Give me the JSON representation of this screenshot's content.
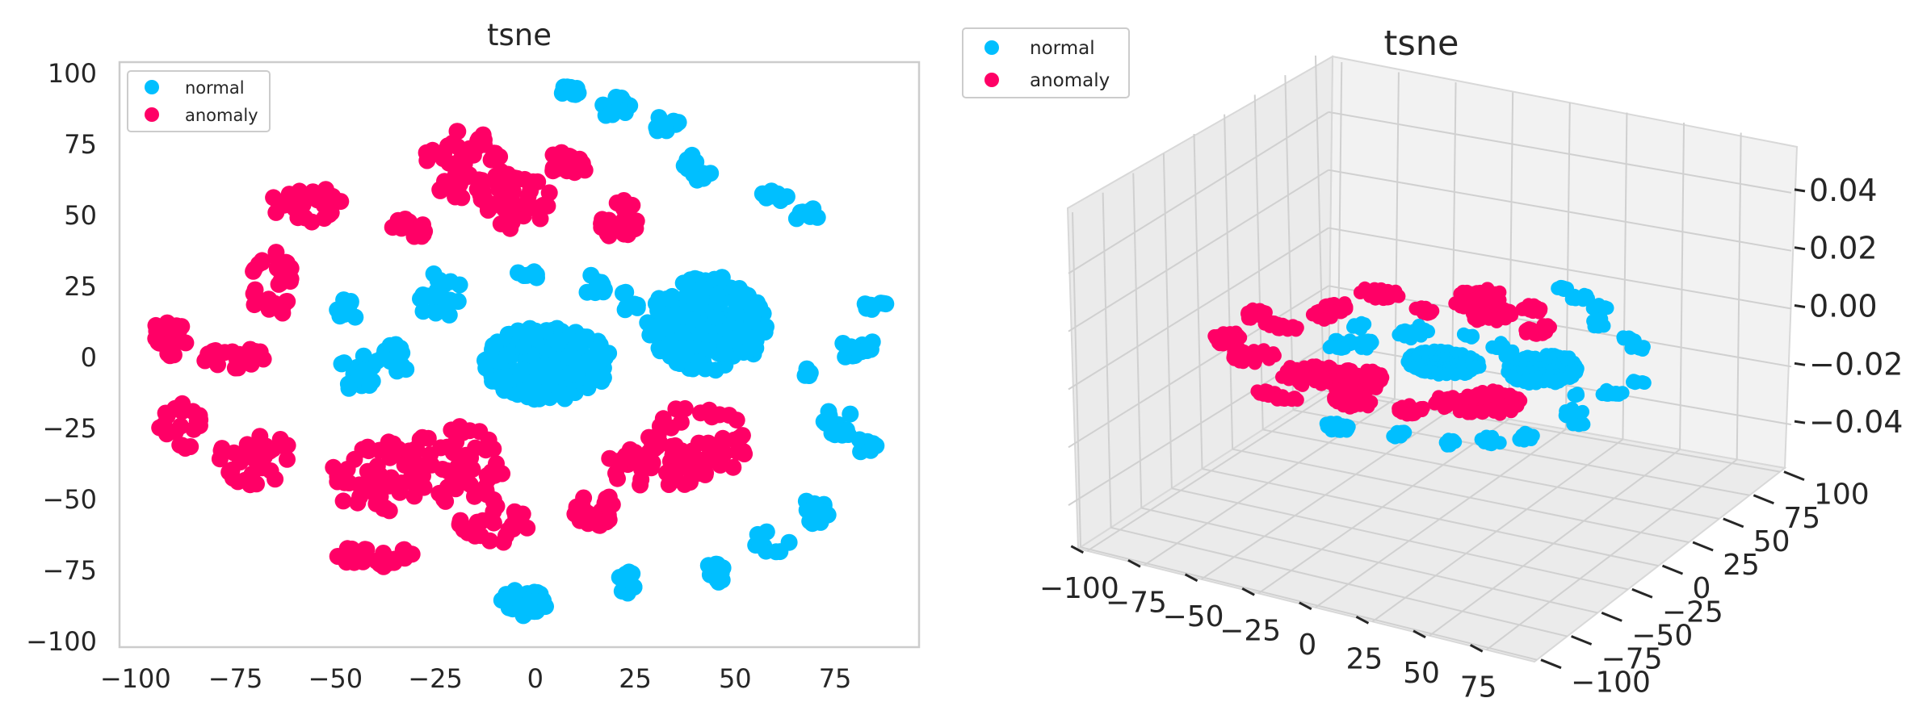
{
  "chart_data": [
    {
      "type": "scatter",
      "title": "tsne",
      "xlabel": "",
      "ylabel": "",
      "xlim": [
        -104,
        96
      ],
      "ylim": [
        -102,
        104
      ],
      "xticks": [
        -100,
        -75,
        -50,
        -25,
        0,
        25,
        50,
        75
      ],
      "yticks": [
        100,
        75,
        50,
        25,
        0,
        -25,
        -50,
        -75,
        -100
      ],
      "xtick_labels": [
        "−100",
        "−75",
        "−50",
        "−25",
        "0",
        "25",
        "50",
        "75"
      ],
      "ytick_labels": [
        "100",
        "75",
        "50",
        "25",
        "0",
        "−25",
        "−50",
        "−75",
        "−100"
      ],
      "grid": false,
      "legend": "top-left",
      "series": [
        {
          "name": "normal",
          "color": "#00bfff",
          "clusters": [
            {
              "cx": 3,
              "cy": -2,
              "rx": 16,
              "ry": 13,
              "n": 260
            },
            {
              "cx": 43,
              "cy": 12,
              "rx": 15,
              "ry": 17,
              "n": 240
            },
            {
              "cx": 9,
              "cy": 94,
              "rx": 3,
              "ry": 2,
              "n": 10
            },
            {
              "cx": 20,
              "cy": 88,
              "rx": 4,
              "ry": 4,
              "n": 12
            },
            {
              "cx": 33,
              "cy": 82,
              "rx": 3,
              "ry": 4,
              "n": 10
            },
            {
              "cx": 40,
              "cy": 66,
              "rx": 4,
              "ry": 6,
              "n": 12
            },
            {
              "cx": 60,
              "cy": 57,
              "rx": 4,
              "ry": 2,
              "n": 10
            },
            {
              "cx": 68,
              "cy": 50,
              "rx": 3,
              "ry": 3,
              "n": 8
            },
            {
              "cx": 14,
              "cy": 25,
              "rx": 4,
              "ry": 4,
              "n": 12
            },
            {
              "cx": -2,
              "cy": 29,
              "rx": 3,
              "ry": 2,
              "n": 8
            },
            {
              "cx": -24,
              "cy": 22,
              "rx": 6,
              "ry": 8,
              "n": 22
            },
            {
              "cx": -47,
              "cy": 17,
              "rx": 3,
              "ry": 4,
              "n": 10
            },
            {
              "cx": -45,
              "cy": -5,
              "rx": 5,
              "ry": 9,
              "n": 22
            },
            {
              "cx": -35,
              "cy": 0,
              "rx": 5,
              "ry": 5,
              "n": 14
            },
            {
              "cx": 23,
              "cy": 19,
              "rx": 3,
              "ry": 4,
              "n": 8
            },
            {
              "cx": 85,
              "cy": 18,
              "rx": 4,
              "ry": 2,
              "n": 10
            },
            {
              "cx": 81,
              "cy": 3,
              "rx": 5,
              "ry": 4,
              "n": 14
            },
            {
              "cx": 68,
              "cy": -4,
              "rx": 2,
              "ry": 3,
              "n": 6
            },
            {
              "cx": 76,
              "cy": -23,
              "rx": 5,
              "ry": 5,
              "n": 14
            },
            {
              "cx": 83,
              "cy": -31,
              "rx": 3,
              "ry": 3,
              "n": 8
            },
            {
              "cx": 70,
              "cy": -54,
              "rx": 4,
              "ry": 5,
              "n": 12
            },
            {
              "cx": 59,
              "cy": -65,
              "rx": 5,
              "ry": 4,
              "n": 12
            },
            {
              "cx": 46,
              "cy": -76,
              "rx": 4,
              "ry": 4,
              "n": 12
            },
            {
              "cx": 23,
              "cy": -80,
              "rx": 3,
              "ry": 5,
              "n": 10
            },
            {
              "cx": -3,
              "cy": -87,
              "rx": 6,
              "ry": 6,
              "n": 30
            }
          ]
        },
        {
          "name": "anomaly",
          "color": "#ff0066",
          "clusters": [
            {
              "cx": -18,
              "cy": 68,
              "rx": 10,
              "ry": 12,
              "n": 55
            },
            {
              "cx": -5,
              "cy": 55,
              "rx": 9,
              "ry": 10,
              "n": 42
            },
            {
              "cx": 8,
              "cy": 68,
              "rx": 5,
              "ry": 5,
              "n": 16
            },
            {
              "cx": 21,
              "cy": 49,
              "rx": 5,
              "ry": 8,
              "n": 22
            },
            {
              "cx": -32,
              "cy": 45,
              "rx": 5,
              "ry": 4,
              "n": 14
            },
            {
              "cx": -57,
              "cy": 54,
              "rx": 9,
              "ry": 7,
              "n": 28
            },
            {
              "cx": -66,
              "cy": 26,
              "rx": 6,
              "ry": 12,
              "n": 34
            },
            {
              "cx": -92,
              "cy": 6,
              "rx": 5,
              "ry": 8,
              "n": 22
            },
            {
              "cx": -75,
              "cy": 0,
              "rx": 8,
              "ry": 4,
              "n": 18
            },
            {
              "cx": -88,
              "cy": -24,
              "rx": 6,
              "ry": 8,
              "n": 22
            },
            {
              "cx": -70,
              "cy": -35,
              "rx": 9,
              "ry": 10,
              "n": 32
            },
            {
              "cx": -40,
              "cy": -42,
              "rx": 12,
              "ry": 13,
              "n": 52
            },
            {
              "cx": -20,
              "cy": -38,
              "rx": 12,
              "ry": 14,
              "n": 52
            },
            {
              "cx": -10,
              "cy": -58,
              "rx": 9,
              "ry": 8,
              "n": 28
            },
            {
              "cx": -40,
              "cy": -70,
              "rx": 10,
              "ry": 5,
              "n": 28
            },
            {
              "cx": 14,
              "cy": -53,
              "rx": 6,
              "ry": 7,
              "n": 22
            },
            {
              "cx": 30,
              "cy": -38,
              "rx": 12,
              "ry": 9,
              "n": 40
            },
            {
              "cx": 40,
              "cy": -30,
              "rx": 14,
              "ry": 13,
              "n": 46
            }
          ]
        }
      ]
    },
    {
      "type": "scatter",
      "projection": "3d",
      "title": "tsne",
      "xlim": [
        -104,
        96
      ],
      "ylim": [
        -102,
        104
      ],
      "zlim": [
        -0.055,
        0.055
      ],
      "xtick_labels": [
        "−100",
        "−75",
        "−50",
        "−25",
        "0",
        "25",
        "50",
        "75"
      ],
      "ytick_labels": [
        "100",
        "75",
        "50",
        "25",
        "0",
        "−25",
        "−50",
        "−75",
        "−100"
      ],
      "ztick_labels": [
        "0.04",
        "0.02",
        "0.00",
        "−0.02",
        "−0.04"
      ],
      "grid": true,
      "legend": "top-left",
      "series_names": [
        "normal",
        "anomaly"
      ]
    }
  ],
  "legend": {
    "left": [
      {
        "label": "normal",
        "color": "#00bfff"
      },
      {
        "label": "anomaly",
        "color": "#ff0066"
      }
    ],
    "right": [
      {
        "label": "normal",
        "color": "#00bfff"
      },
      {
        "label": "anomaly",
        "color": "#ff0066"
      }
    ]
  }
}
